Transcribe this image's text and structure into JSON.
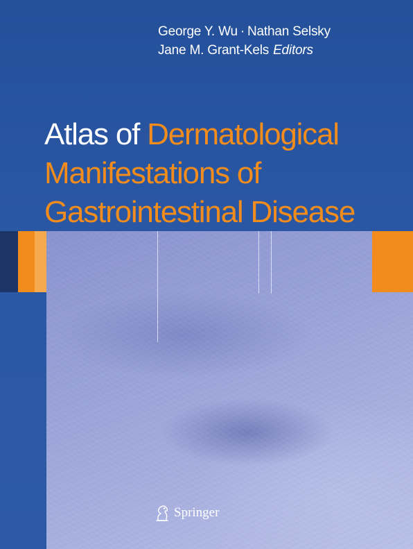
{
  "editors": {
    "line1_a": "George Y. Wu",
    "separator": "·",
    "line1_b": "Nathan Selsky",
    "line2_name": "Jane M. Grant-Kels",
    "line2_role": "Editors"
  },
  "title": {
    "prefix": "Atlas of",
    "line1_rest": "Dermatological",
    "line2": "Manifestations of",
    "line3": "Gastrointestinal Disease"
  },
  "publisher": {
    "icon": "springer-knight-icon",
    "name": "Springer"
  },
  "colors": {
    "background": "#2a57a3",
    "accent": "#f28c1c",
    "text": "#ffffff"
  }
}
